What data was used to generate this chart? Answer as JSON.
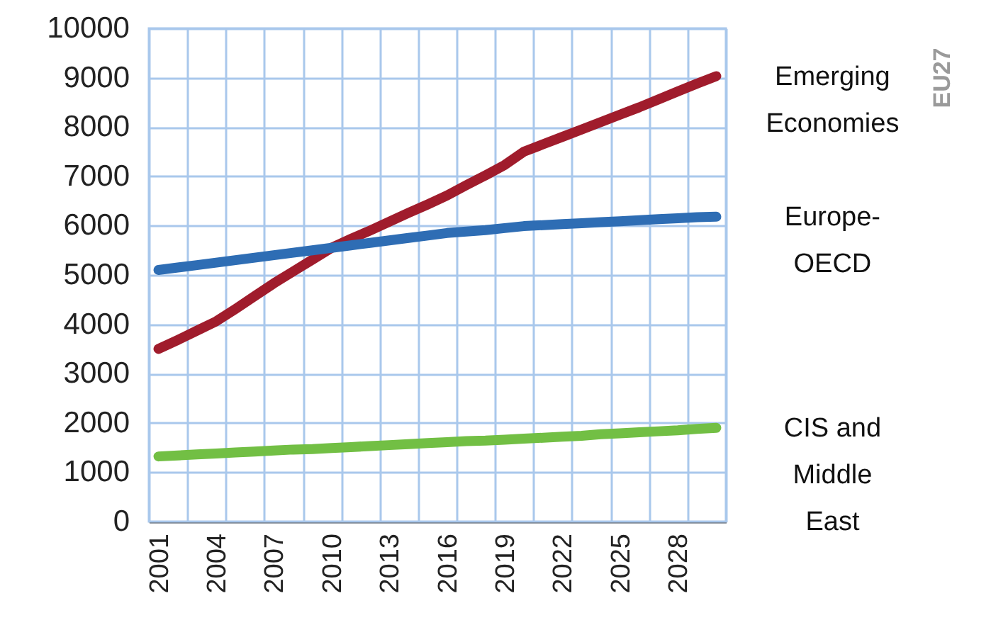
{
  "chart_data": {
    "type": "line",
    "categories": [
      "2001",
      null,
      null,
      "2004",
      null,
      null,
      "2007",
      null,
      null,
      "2010",
      null,
      null,
      "2013",
      null,
      null,
      "2016",
      null,
      null,
      "2019",
      null,
      null,
      "2022",
      null,
      null,
      "2025",
      null,
      null,
      "2028",
      null,
      null
    ],
    "series": [
      {
        "name": "Emerging\nEconomies",
        "color": "#a01c2c",
        "values": [
          3500,
          3680,
          3870,
          4060,
          4310,
          4570,
          4830,
          5070,
          5310,
          5550,
          5730,
          5900,
          6080,
          6260,
          6430,
          6610,
          6820,
          7020,
          7230,
          7500,
          7650,
          7800,
          7950,
          8100,
          8250,
          8400,
          8560,
          8720,
          8880,
          9030
        ]
      },
      {
        "name": "Europe-\nOECD",
        "color": "#2e6db4",
        "values": [
          5100,
          5150,
          5200,
          5250,
          5300,
          5350,
          5400,
          5450,
          5500,
          5550,
          5600,
          5650,
          5700,
          5750,
          5800,
          5850,
          5880,
          5910,
          5950,
          5990,
          6010,
          6030,
          6050,
          6070,
          6090,
          6110,
          6130,
          6150,
          6170,
          6180
        ]
      },
      {
        "name": "CIS and\nMiddle\nEast",
        "color": "#72bf44",
        "values": [
          1320,
          1340,
          1360,
          1380,
          1400,
          1420,
          1440,
          1460,
          1470,
          1490,
          1510,
          1530,
          1550,
          1570,
          1590,
          1610,
          1630,
          1640,
          1660,
          1680,
          1700,
          1720,
          1740,
          1770,
          1790,
          1810,
          1830,
          1850,
          1880,
          1900
        ]
      }
    ],
    "ylim": [
      0,
      10000
    ],
    "yticks": [
      0,
      1000,
      2000,
      3000,
      4000,
      5000,
      6000,
      7000,
      8000,
      9000,
      10000
    ],
    "grid": true,
    "marker": "none",
    "line_style": "solid",
    "annotations": [
      "EU27"
    ]
  }
}
